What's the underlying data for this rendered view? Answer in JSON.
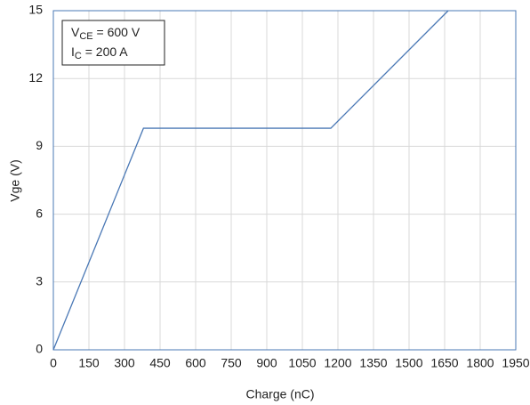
{
  "chart_data": {
    "type": "line",
    "x_label": "Charge (nC)",
    "y_label": "Vge (V)",
    "x": [
      0,
      380,
      1170,
      1665
    ],
    "series": [
      {
        "name": "Vge",
        "color": "#4a78b5",
        "values": [
          0,
          9.8,
          9.8,
          15
        ]
      }
    ],
    "xlim": [
      0,
      1950
    ],
    "xticks": [
      0,
      150,
      300,
      450,
      600,
      750,
      900,
      1050,
      1200,
      1350,
      1500,
      1650,
      1800,
      1950
    ],
    "ylim": [
      0,
      15
    ],
    "yticks": [
      0,
      3,
      6,
      9,
      12,
      15
    ],
    "grid": true,
    "annotations": [
      {
        "main": "V",
        "sub": "CE",
        "rest": " = 600 V"
      },
      {
        "main": "I",
        "sub": "C",
        "rest": " = 200 A"
      }
    ]
  }
}
